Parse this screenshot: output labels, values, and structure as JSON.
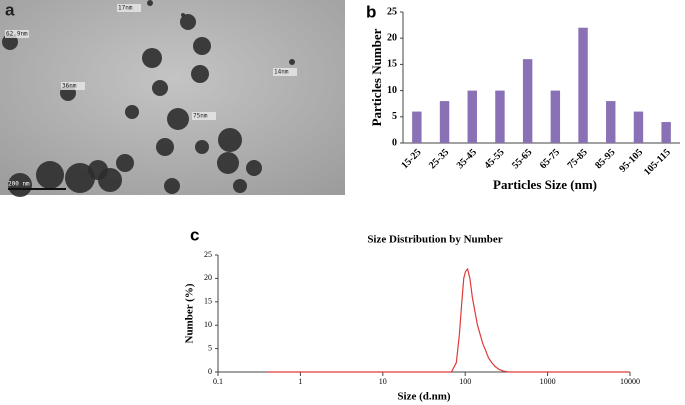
{
  "image": {
    "panel_label": "a",
    "annotations": [
      "62.9nm",
      "17nm",
      "36nm",
      "14nm",
      "75nm"
    ],
    "scale_bar": "200 nm"
  },
  "chart_data": [
    {
      "type": "bar",
      "panel_label": "b",
      "x_label": "Particles Size (nm)",
      "y_label": "Particles Number",
      "categories": [
        "15-25",
        "25-35",
        "35-45",
        "45-55",
        "55-65",
        "65-75",
        "75-85",
        "85-95",
        "95-105",
        "105-115"
      ],
      "values": [
        6,
        8,
        10,
        10,
        16,
        10,
        22,
        8,
        6,
        4
      ],
      "color": "#8a70b5",
      "ylim": [
        0,
        25
      ],
      "yticks": [
        0,
        5,
        10,
        15,
        20,
        25
      ]
    },
    {
      "type": "line",
      "panel_label": "c",
      "title": "Size Distribution by Number",
      "x_label": "Size (d.nm)",
      "y_label": "Number (%)",
      "log_x": true,
      "x": [
        0.4,
        10,
        68,
        78,
        85,
        91,
        96,
        101,
        107,
        114,
        122,
        131,
        141,
        152,
        164,
        178,
        192,
        210,
        230,
        255,
        290,
        340,
        1000,
        10000
      ],
      "series": [
        {
          "color": "#e03a3a",
          "values": [
            0,
            0,
            0,
            2,
            8,
            15,
            20,
            21.5,
            22,
            20,
            16,
            13,
            10,
            8,
            6,
            4.5,
            3,
            2,
            1.2,
            0.6,
            0.2,
            0,
            0,
            0
          ]
        }
      ],
      "xlim": [
        0.1,
        10000
      ],
      "xticks": [
        0.1,
        1,
        10,
        100,
        1000,
        10000
      ],
      "ylim": [
        0,
        25
      ],
      "yticks": [
        0,
        5,
        10,
        15,
        20,
        25
      ]
    }
  ]
}
